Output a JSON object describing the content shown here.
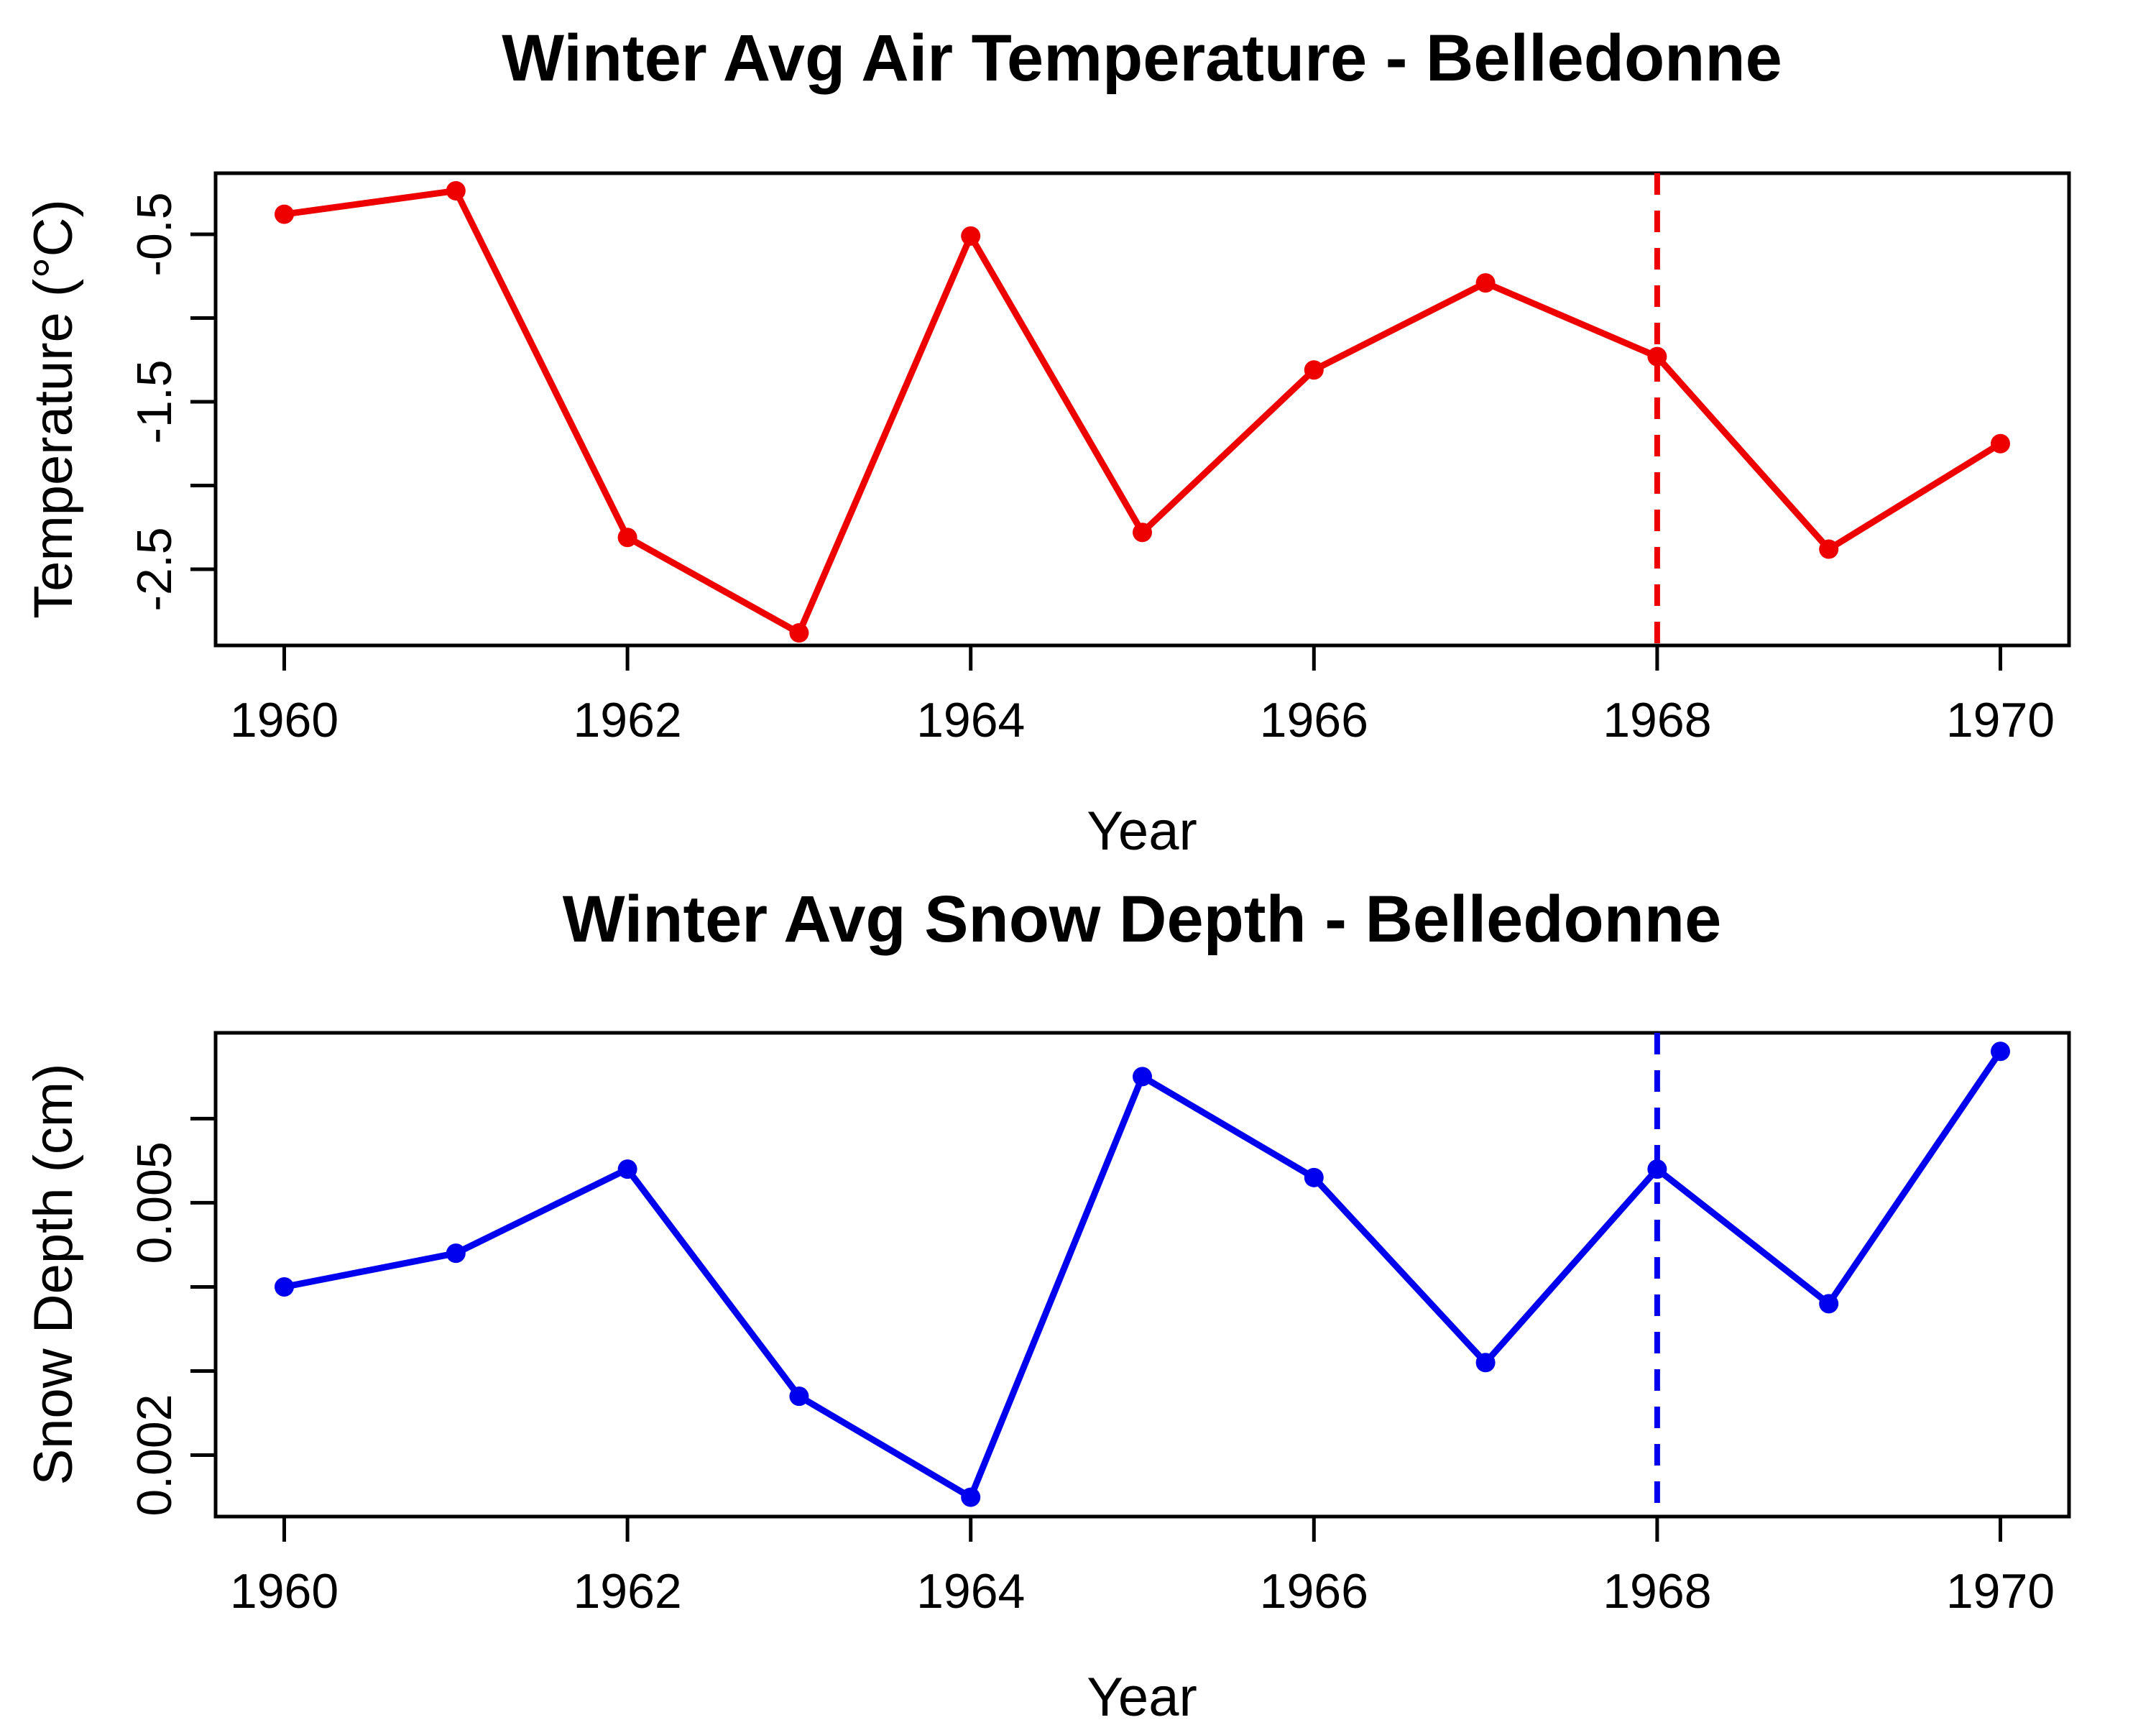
{
  "figure": {
    "background": "#FFFFFF",
    "axis_color": "#000000"
  },
  "chart_data": [
    {
      "type": "line",
      "title": "Winter Avg Air Temperature - Belledonne",
      "xlabel": "Year",
      "ylabel": "Temperature (°C)",
      "grid": false,
      "legend": "none",
      "xlim": [
        1959.6,
        1970.4
      ],
      "ylim": [
        -2.955,
        -0.135
      ],
      "x_ticks": [
        {
          "value": 1960,
          "label": "1960"
        },
        {
          "value": 1962,
          "label": "1962"
        },
        {
          "value": 1964,
          "label": "1964"
        },
        {
          "value": 1966,
          "label": "1966"
        },
        {
          "value": 1968,
          "label": "1968"
        },
        {
          "value": 1970,
          "label": "1970"
        }
      ],
      "y_ticks": [
        {
          "value": -0.5,
          "label": "-0.5"
        },
        {
          "value": -1.0,
          "label": ""
        },
        {
          "value": -1.5,
          "label": "-1.5"
        },
        {
          "value": -2.0,
          "label": ""
        },
        {
          "value": -2.5,
          "label": "-2.5"
        }
      ],
      "vline": {
        "x": 1968,
        "style": "dashed",
        "color": "#EE0000"
      },
      "series": [
        {
          "name": "winter-avg-air-temperature",
          "color": "#EE0000",
          "marker": "filled-circle",
          "x": [
            1960,
            1961,
            1962,
            1963,
            1964,
            1965,
            1966,
            1967,
            1968,
            1969,
            1970
          ],
          "y": [
            -0.38,
            -0.24,
            -2.31,
            -2.88,
            -0.51,
            -2.28,
            -1.31,
            -0.79,
            -1.23,
            -2.38,
            -1.75
          ]
        }
      ]
    },
    {
      "type": "line",
      "title": "Winter Avg Snow Depth - Belledonne",
      "xlabel": "Year",
      "ylabel": "Snow Depth (cm)",
      "grid": false,
      "legend": "none",
      "xlim": [
        1959.6,
        1970.4
      ],
      "ylim": [
        0.00127,
        0.00702
      ],
      "x_ticks": [
        {
          "value": 1960,
          "label": "1960"
        },
        {
          "value": 1962,
          "label": "1962"
        },
        {
          "value": 1964,
          "label": "1964"
        },
        {
          "value": 1966,
          "label": "1966"
        },
        {
          "value": 1968,
          "label": "1968"
        },
        {
          "value": 1970,
          "label": "1970"
        }
      ],
      "y_ticks": [
        {
          "value": 0.002,
          "label": "0.002"
        },
        {
          "value": 0.003,
          "label": ""
        },
        {
          "value": 0.004,
          "label": ""
        },
        {
          "value": 0.005,
          "label": "0.005"
        },
        {
          "value": 0.006,
          "label": ""
        }
      ],
      "vline": {
        "x": 1968,
        "style": "dashed",
        "color": "#0000EE"
      },
      "series": [
        {
          "name": "winter-avg-snow-depth",
          "color": "#0000EE",
          "marker": "filled-circle",
          "x": [
            1960,
            1961,
            1962,
            1963,
            1964,
            1965,
            1966,
            1967,
            1968,
            1969,
            1970
          ],
          "y": [
            0.004,
            0.0044,
            0.0054,
            0.0027,
            0.0015,
            0.0065,
            0.0053,
            0.0031,
            0.0054,
            0.0038,
            0.0068
          ]
        }
      ]
    }
  ]
}
